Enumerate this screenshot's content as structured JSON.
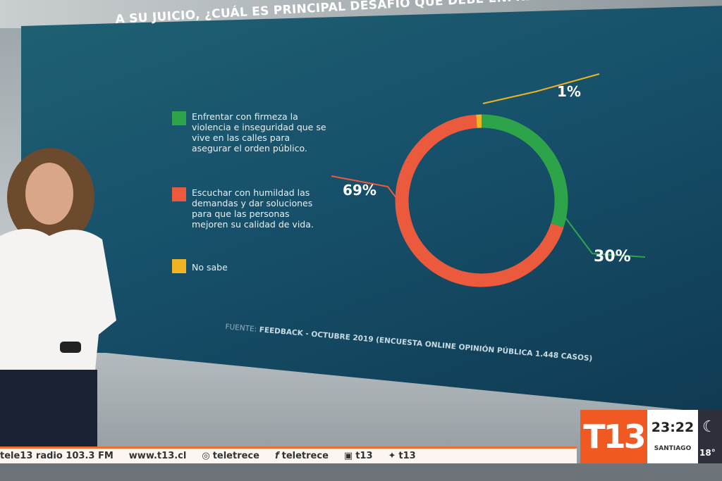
{
  "chart_data": {
    "type": "pie",
    "variant": "donut",
    "title": "A SU JUICIO, ¿CUÁL ES PRINCIPAL DESAFÍO QUE DEBE ENFRENTAR EL GOBIERNO?",
    "series": [
      {
        "name": "Enfrentar con firmeza la violencia e inseguridad que se vive en las calles para asegurar el orden público.",
        "value": 30,
        "label": "30%",
        "color": "#2ea44a"
      },
      {
        "name": "Escuchar con humildad las demandas y dar soluciones para que las personas mejoren su calidad de vida.",
        "value": 69,
        "label": "69%",
        "color": "#ec5a3e"
      },
      {
        "name": "No sabe",
        "value": 1,
        "label": "1%",
        "color": "#f0b323"
      }
    ],
    "legend_position": "left",
    "source_prefix": "FUENTE:",
    "source": "FEEDBACK - OCTUBRE 2019 (ENCUESTA ONLINE OPINIÓN PÚBLICA 1.448 CASOS)"
  },
  "ticker": {
    "items": [
      {
        "icon": "radio",
        "text": "tele13 radio 103.3 FM"
      },
      {
        "icon": "web",
        "text": "www.t13.cl"
      },
      {
        "icon": "instagram-icon",
        "text": "teletrece"
      },
      {
        "icon": "facebook-icon",
        "text": "teletrece"
      },
      {
        "icon": "youtube-icon",
        "text": "t13"
      },
      {
        "icon": "twitter-icon",
        "text": "t13"
      }
    ]
  },
  "channel": {
    "logo": "T13",
    "time": "23:22",
    "city": "SANTIAGO",
    "temperature": "18°",
    "brand_color": "#f05a22"
  }
}
